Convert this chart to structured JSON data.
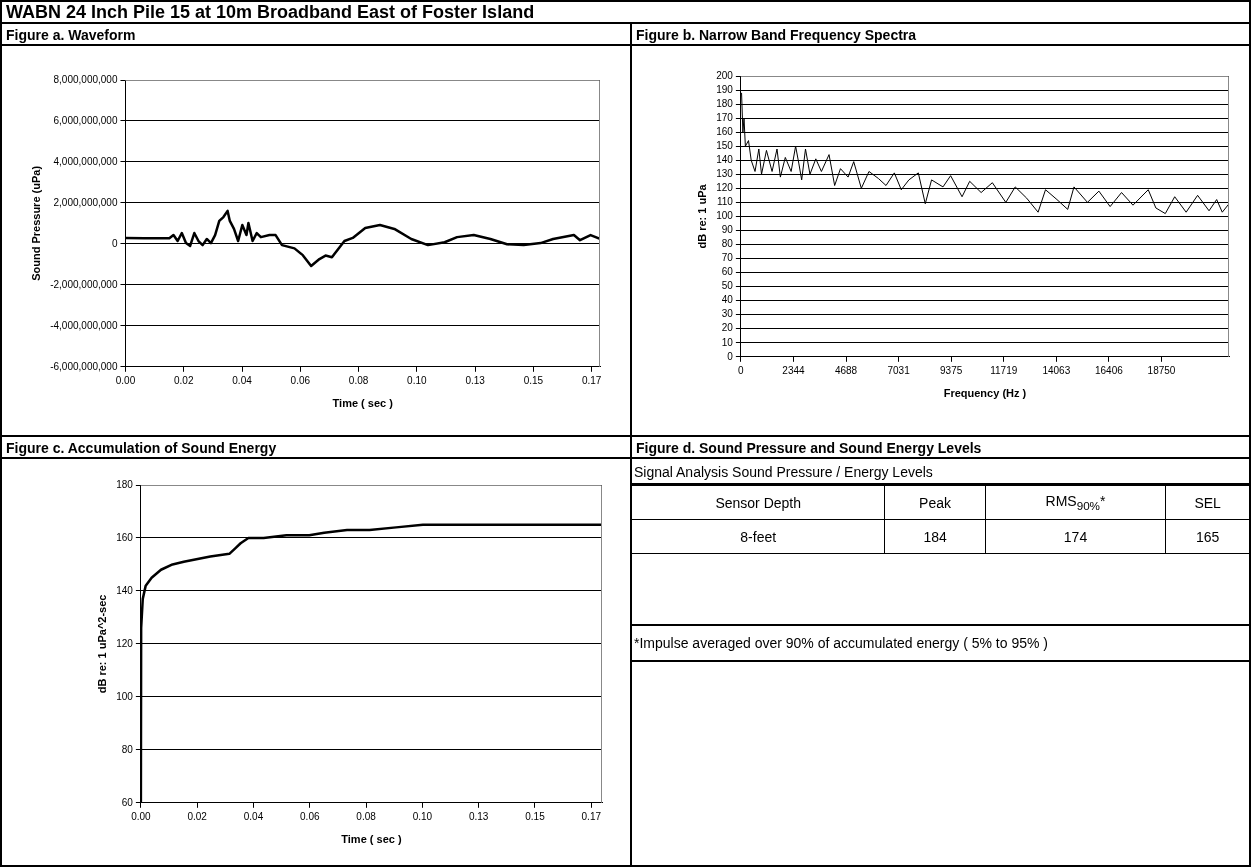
{
  "chart_data": [
    {
      "type": "other",
      "title": "WABN 24 Inch Pile 15 at 10m Broadband East of Foster Island"
    },
    {
      "type": "line",
      "title": "Figure a. Waveform",
      "xlabel": "Time ( sec )",
      "ylabel": "Sound Pressure (uPa)",
      "grid": "y",
      "xlim": [
        0,
        0.171
      ],
      "ylim": [
        -6000000000,
        8000000000
      ],
      "xticks": [
        {
          "value": 0,
          "label": "0.00"
        },
        {
          "value": 0.021,
          "label": "0.02"
        },
        {
          "value": 0.042,
          "label": "0.04"
        },
        {
          "value": 0.063,
          "label": "0.06"
        },
        {
          "value": 0.084,
          "label": "0.08"
        },
        {
          "value": 0.105,
          "label": "0.10"
        },
        {
          "value": 0.126,
          "label": "0.13"
        },
        {
          "value": 0.147,
          "label": "0.15"
        },
        {
          "value": 0.168,
          "label": "0.17"
        }
      ],
      "yticks": [
        {
          "value": -6000000000,
          "label": "-6,000,000,000"
        },
        {
          "value": -4000000000,
          "label": "-4,000,000,000"
        },
        {
          "value": -2000000000,
          "label": "-2,000,000,000"
        },
        {
          "value": 0,
          "label": "0"
        },
        {
          "value": 2000000000,
          "label": "2,000,000,000"
        },
        {
          "value": 4000000000,
          "label": "4,000,000,000"
        },
        {
          "value": 6000000000,
          "label": "6,000,000,000"
        },
        {
          "value": 8000000000,
          "label": "8,000,000,000"
        }
      ],
      "series": [
        {
          "color": "#000000",
          "x": [
            0,
            0.0068,
            0.0158,
            0.0173,
            0.0188,
            0.0203,
            0.0218,
            0.0233,
            0.0248,
            0.0263,
            0.0278,
            0.0293,
            0.0308,
            0.0323,
            0.0338,
            0.0353,
            0.0368,
            0.0376,
            0.0391,
            0.0406,
            0.0421,
            0.0436,
            0.0443,
            0.0458,
            0.0473,
            0.0488,
            0.0519,
            0.0541,
            0.0564,
            0.0609,
            0.0639,
            0.0669,
            0.0699,
            0.0721,
            0.0744,
            0.0789,
            0.0819,
            0.0864,
            0.0917,
            0.0969,
            0.103,
            0.109,
            0.115,
            0.1195,
            0.1255,
            0.1315,
            0.1375,
            0.1435,
            0.1496,
            0.1541,
            0.1616,
            0.1638,
            0.1676,
            0.171
          ],
          "values": [
            290000000,
            270000000,
            270000000,
            430000000,
            140000000,
            530000000,
            40000000,
            -100000000,
            530000000,
            140000000,
            -60000000,
            240000000,
            40000000,
            430000000,
            1120000000,
            1310000000,
            1610000000,
            1120000000,
            730000000,
            140000000,
            920000000,
            430000000,
            1020000000,
            140000000,
            530000000,
            330000000,
            430000000,
            430000000,
            -60000000,
            -220000000,
            -550000000,
            -1080000000,
            -740000000,
            -570000000,
            -650000000,
            140000000,
            290000000,
            780000000,
            920000000,
            730000000,
            240000000,
            -60000000,
            80000000,
            330000000,
            430000000,
            240000000,
            -20000000,
            -60000000,
            40000000,
            240000000,
            430000000,
            180000000,
            430000000,
            240000000
          ]
        }
      ]
    },
    {
      "type": "line",
      "title": "Figure b. Narrow Band Frequency Spectra",
      "xlabel": "Frequency (Hz )",
      "ylabel": "dB re: 1 uPa",
      "grid": "y",
      "xlim": [
        0,
        21760
      ],
      "ylim": [
        0,
        200
      ],
      "xticks": [
        0,
        {
          "value": 2343.75,
          "label": "2344"
        },
        {
          "value": 4687.5,
          "label": "4688"
        },
        {
          "value": 7031.25,
          "label": "7031"
        },
        9375,
        {
          "value": 11718.75,
          "label": "11719"
        },
        {
          "value": 14062.5,
          "label": "14063"
        },
        {
          "value": 16406.25,
          "label": "16406"
        },
        18750
      ],
      "yticks": [
        0,
        10,
        20,
        30,
        40,
        50,
        60,
        70,
        80,
        90,
        100,
        110,
        120,
        130,
        140,
        150,
        160,
        170,
        180,
        190,
        200
      ],
      "series": [
        {
          "color": "#000000",
          "x": [
            30,
            90,
            140,
            200,
            340,
            460,
            630,
            800,
            920,
            1140,
            1390,
            1610,
            1760,
            1980,
            2240,
            2440,
            2580,
            2710,
            2880,
            3080,
            3340,
            3590,
            3930,
            4180,
            4440,
            4780,
            5030,
            5370,
            5710,
            6130,
            6470,
            6840,
            7150,
            7490,
            7910,
            8220,
            8500,
            9010,
            9350,
            9860,
            10200,
            10710,
            11210,
            11810,
            12230,
            12740,
            13250,
            13580,
            14090,
            14570,
            14850,
            15450,
            15960,
            16460,
            16970,
            17480,
            18160,
            18500,
            18920,
            19340,
            19850,
            20360,
            20870,
            21210,
            21460,
            21760
          ],
          "values": [
            188,
            160,
            170,
            150,
            154,
            140,
            132,
            148,
            130,
            147,
            132,
            148,
            128,
            142,
            132,
            150,
            138,
            126,
            148,
            130,
            141,
            132,
            144,
            122,
            134,
            128,
            139,
            120,
            132,
            127,
            122,
            131,
            119,
            126,
            131,
            109,
            126,
            121,
            129,
            114,
            125,
            117,
            124,
            110,
            121,
            113,
            103,
            119,
            112,
            105,
            121,
            110,
            118,
            107,
            117,
            108,
            119,
            106,
            102,
            114,
            103,
            115,
            104,
            112,
            103,
            109
          ]
        }
      ]
    },
    {
      "type": "line",
      "title": "Figure c. Accumulation of Sound Energy",
      "xlabel": "Time ( sec )",
      "ylabel": "dB re: 1 uPa^2-sec",
      "grid": "y",
      "xlim": [
        0,
        0.172
      ],
      "ylim": [
        60,
        180
      ],
      "xticks": [
        {
          "value": 0,
          "label": "0.00"
        },
        {
          "value": 0.021,
          "label": "0.02"
        },
        {
          "value": 0.042,
          "label": "0.04"
        },
        {
          "value": 0.063,
          "label": "0.06"
        },
        {
          "value": 0.084,
          "label": "0.08"
        },
        {
          "value": 0.105,
          "label": "0.10"
        },
        {
          "value": 0.126,
          "label": "0.13"
        },
        {
          "value": 0.147,
          "label": "0.15"
        },
        {
          "value": 0.168,
          "label": "0.17"
        }
      ],
      "yticks": [
        60,
        80,
        100,
        120,
        140,
        160,
        180
      ],
      "series": [
        {
          "color": "#000000",
          "x": [
            0,
            0.0001,
            0.0007,
            0.0018,
            0.004,
            0.0075,
            0.0118,
            0.016,
            0.0207,
            0.0259,
            0.033,
            0.0351,
            0.0372,
            0.0401,
            0.0458,
            0.0543,
            0.0628,
            0.0684,
            0.0769,
            0.0853,
            0.0952,
            0.1052,
            0.1264,
            0.1478,
            0.1676,
            0.172
          ],
          "values": [
            60,
            126,
            137,
            142,
            145,
            148,
            150,
            151,
            152,
            153,
            154,
            156,
            158,
            160,
            160,
            161,
            161,
            162,
            163,
            163,
            164,
            165,
            165,
            165,
            165,
            165
          ]
        }
      ]
    },
    {
      "type": "other",
      "title": "Figure d. Sound Pressure and Sound Energy Levels",
      "subtitle": "Signal Analysis Sound Pressure / Energy Levels",
      "ylabel": "Sensor Depth",
      "categories": [
        "Peak",
        "RMS$_{90%}$*",
        "SEL"
      ],
      "y_categories": [
        "8-feet"
      ],
      "values": [
        184,
        174,
        165
      ],
      "data_labels": true,
      "annotations": [
        "*Impulse averaged over 90% of accumulated energy ( 5% to 95% )"
      ]
    }
  ]
}
